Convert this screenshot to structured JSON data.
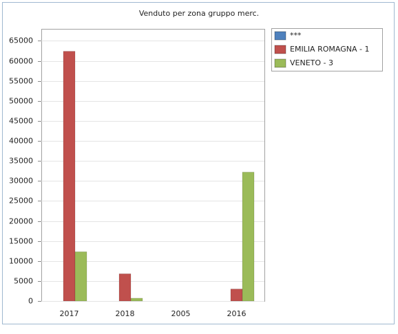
{
  "chart_data": {
    "type": "bar",
    "title": "Venduto per zona gruppo merc.",
    "categories": [
      "2017",
      "2018",
      "2005",
      "2016"
    ],
    "series": [
      {
        "name": "***",
        "color": "#4f81bd",
        "values": [
          0,
          0,
          0,
          0
        ]
      },
      {
        "name": "EMILIA ROMAGNA - 1",
        "color": "#c0504d",
        "values": [
          62400,
          6800,
          0,
          3000
        ]
      },
      {
        "name": "VENETO - 3",
        "color": "#9bbb59",
        "values": [
          12300,
          700,
          0,
          32200
        ]
      }
    ],
    "ylim": [
      0,
      68000
    ],
    "yticks": [
      0,
      5000,
      10000,
      15000,
      20000,
      25000,
      30000,
      35000,
      40000,
      45000,
      50000,
      55000,
      60000,
      65000
    ],
    "grid": true,
    "legend": "right"
  }
}
